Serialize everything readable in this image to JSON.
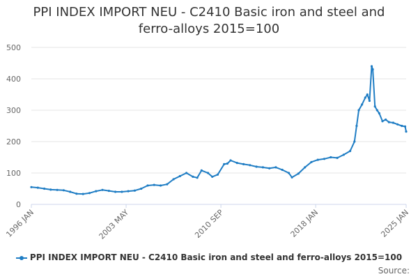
{
  "chart_data": {
    "type": "line",
    "title": "PPI INDEX IMPORT NEU - C2410 Basic iron and steel and ferro-alloys 2015=100",
    "title_lines": [
      "PPI INDEX IMPORT NEU - C2410 Basic iron and steel and",
      "ferro-alloys 2015=100"
    ],
    "xlabel": "",
    "ylabel": "",
    "x_tick_labels": [
      "1996 JAN",
      "2003 MAY",
      "2010 SEP",
      "2018 JAN",
      "2025 JAN"
    ],
    "x_tick_dates": [
      "1996-01",
      "2003-05",
      "2010-09",
      "2018-01",
      "2025-01"
    ],
    "y_ticks": [
      0,
      100,
      200,
      300,
      400,
      500
    ],
    "ylim": [
      0,
      500
    ],
    "xlim": [
      "1996-01",
      "2025-01"
    ],
    "grid": "horizontal",
    "legend_position": "bottom",
    "color": "#1f7dc4",
    "series": [
      {
        "name": "PPI INDEX IMPORT NEU - C2410 Basic iron and steel and ferro-alloys 2015=100",
        "x": [
          "1996-01",
          "1996-07",
          "1997-01",
          "1997-07",
          "1998-01",
          "1998-07",
          "1999-01",
          "1999-07",
          "2000-01",
          "2000-07",
          "2001-01",
          "2001-07",
          "2002-01",
          "2002-07",
          "2003-01",
          "2003-07",
          "2004-01",
          "2004-07",
          "2005-01",
          "2005-07",
          "2006-01",
          "2006-07",
          "2007-01",
          "2007-07",
          "2008-01",
          "2008-07",
          "2008-11",
          "2009-03",
          "2009-09",
          "2010-01",
          "2010-06",
          "2010-12",
          "2011-03",
          "2011-06",
          "2011-12",
          "2012-06",
          "2012-12",
          "2013-06",
          "2013-12",
          "2014-06",
          "2014-12",
          "2015-06",
          "2015-12",
          "2016-03",
          "2016-09",
          "2017-03",
          "2017-09",
          "2018-03",
          "2018-09",
          "2019-03",
          "2019-09",
          "2020-03",
          "2020-09",
          "2021-01",
          "2021-03",
          "2021-05",
          "2021-08",
          "2021-11",
          "2022-01",
          "2022-03",
          "2022-05",
          "2022-06",
          "2022-08",
          "2022-10",
          "2022-12",
          "2023-03",
          "2023-06",
          "2023-09",
          "2024-01",
          "2024-05",
          "2024-09",
          "2024-12",
          "2025-01"
        ],
        "values": [
          55,
          53,
          50,
          47,
          46,
          45,
          40,
          34,
          33,
          36,
          42,
          46,
          43,
          40,
          40,
          42,
          44,
          50,
          60,
          62,
          60,
          64,
          80,
          90,
          100,
          88,
          85,
          108,
          100,
          88,
          95,
          128,
          130,
          140,
          132,
          128,
          125,
          120,
          118,
          115,
          118,
          110,
          100,
          86,
          98,
          118,
          135,
          142,
          145,
          150,
          148,
          158,
          170,
          200,
          250,
          300,
          318,
          340,
          350,
          330,
          440,
          430,
          312,
          300,
          290,
          265,
          270,
          262,
          260,
          255,
          250,
          248,
          232
        ]
      }
    ]
  },
  "source_label": "Source:"
}
